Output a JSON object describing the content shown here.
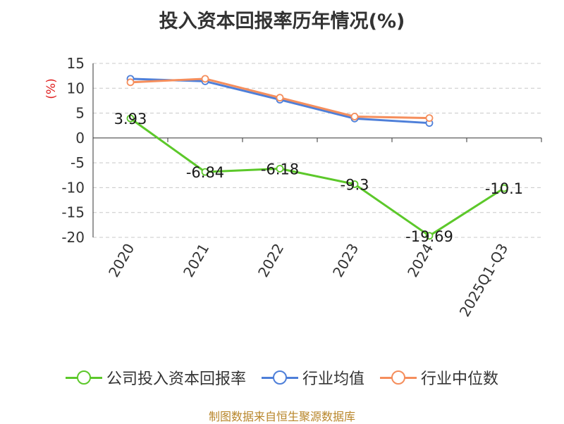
{
  "chart_data": {
    "type": "line",
    "title": "投入资本回报率历年情况(%)",
    "ylabel": "(%)",
    "xlabel": "",
    "categories": [
      "2020",
      "2021",
      "2022",
      "2023",
      "2024",
      "2025Q1-Q3"
    ],
    "ylim": [
      -20,
      15
    ],
    "yticks": [
      15,
      10,
      5,
      0,
      -5,
      -10,
      -15,
      -20
    ],
    "grid": true,
    "legend_position": "bottom",
    "series": [
      {
        "name": "公司投入资本回报率",
        "color": "#5cc82a",
        "values": [
          3.93,
          -6.84,
          -6.18,
          -9.3,
          -19.69,
          -10.1
        ],
        "labels": [
          "3.93",
          "-6.84",
          "-6.18",
          "-9.3",
          "-19.69",
          "-10.1"
        ]
      },
      {
        "name": "行业均值",
        "color": "#4e7fd9",
        "values": [
          11.9,
          11.4,
          7.7,
          3.9,
          3.0,
          null
        ]
      },
      {
        "name": "行业中位数",
        "color": "#f58e5c",
        "values": [
          11.2,
          11.9,
          8.1,
          4.3,
          4.0,
          null
        ]
      }
    ]
  },
  "footer": {
    "source": "制图数据来自恒生聚源数据库"
  }
}
